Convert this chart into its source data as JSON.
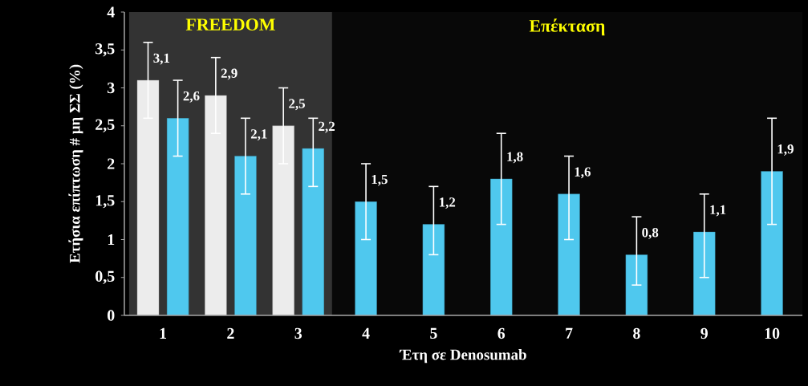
{
  "chart_data": {
    "type": "bar",
    "xlabel": "Έτη σε  Denosumab",
    "ylabel": "Ετήσια επίπτωση # μη ΣΣ (%)",
    "categories": [
      "1",
      "2",
      "3",
      "4",
      "5",
      "6",
      "7",
      "8",
      "9",
      "10"
    ],
    "series": [
      {
        "color": "#ececec",
        "values": [
          3.1,
          2.9,
          2.5,
          null,
          null,
          null,
          null,
          null,
          null,
          null
        ],
        "errors": [
          0.5,
          0.5,
          0.5,
          null,
          null,
          null,
          null,
          null,
          null,
          null
        ],
        "value_labels": [
          "3,1",
          "2,9",
          "2,5",
          null,
          null,
          null,
          null,
          null,
          null,
          null
        ]
      },
      {
        "color": "#4fc8ee",
        "values": [
          2.6,
          2.1,
          2.2,
          1.5,
          1.2,
          1.8,
          1.6,
          0.8,
          1.1,
          1.9
        ],
        "errors": [
          0.5,
          0.5,
          [
            1.7,
            2.6
          ],
          0.5,
          [
            0.8,
            1.7
          ],
          0.6,
          [
            1.0,
            2.1
          ],
          [
            0.4,
            1.3
          ],
          [
            0.5,
            1.6
          ],
          0.7
        ],
        "value_labels": [
          "2,6",
          "2,1",
          "2,2",
          "1,5",
          "1,2",
          "1,8",
          "1,6",
          "0,8",
          "1,1",
          "1,9"
        ]
      }
    ],
    "ylim": [
      0,
      4
    ],
    "yticks": [
      0,
      {
        "value": 0.5,
        "label": "0,5"
      },
      1,
      {
        "value": 1.5,
        "label": "1,5"
      },
      2,
      {
        "value": 2.5,
        "label": "2,5"
      },
      3,
      {
        "value": 3.5,
        "label": "3,5"
      },
      4
    ],
    "bands": [
      {
        "axis": "x",
        "from": "1",
        "to": "3",
        "label": "FREEDOM",
        "color": "#333333"
      },
      {
        "axis": "x",
        "from": "4",
        "to": "10",
        "label": "Επέκταση",
        "color": "#080808"
      }
    ],
    "grid": false
  }
}
